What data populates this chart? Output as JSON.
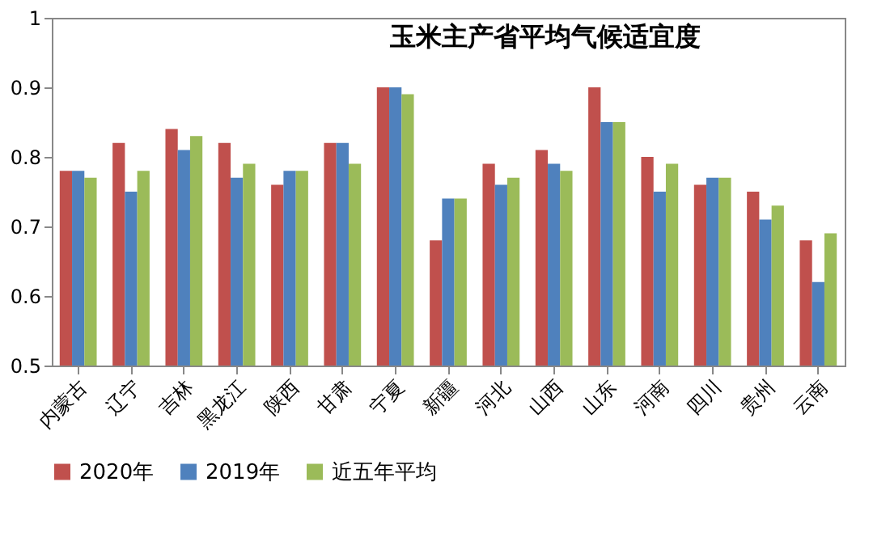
{
  "chart_data": {
    "type": "bar",
    "title": "玉米主产省平均气候适宜度",
    "categories": [
      "内蒙古",
      "辽宁",
      "吉林",
      "黑龙江",
      "陕西",
      "甘肃",
      "宁夏",
      "新疆",
      "河北",
      "山西",
      "山东",
      "河南",
      "四川",
      "贵州",
      "云南"
    ],
    "series": [
      {
        "name": "2020年",
        "color": "#c0504d",
        "values": [
          0.78,
          0.82,
          0.84,
          0.82,
          0.76,
          0.82,
          0.9,
          0.68,
          0.79,
          0.81,
          0.9,
          0.8,
          0.76,
          0.75,
          0.68
        ]
      },
      {
        "name": "2019年",
        "color": "#4f81bd",
        "values": [
          0.78,
          0.75,
          0.81,
          0.77,
          0.78,
          0.82,
          0.9,
          0.74,
          0.76,
          0.79,
          0.85,
          0.75,
          0.77,
          0.71,
          0.62
        ]
      },
      {
        "name": "近五年平均",
        "color": "#9bbb59",
        "values": [
          0.77,
          0.78,
          0.83,
          0.79,
          0.78,
          0.79,
          0.89,
          0.74,
          0.77,
          0.78,
          0.85,
          0.79,
          0.77,
          0.73,
          0.69
        ]
      }
    ],
    "ylim": [
      0.5,
      1
    ],
    "yticks": [
      0.5,
      0.6,
      0.7,
      0.8,
      0.9,
      1
    ],
    "grid": false,
    "legend": "bottom"
  }
}
